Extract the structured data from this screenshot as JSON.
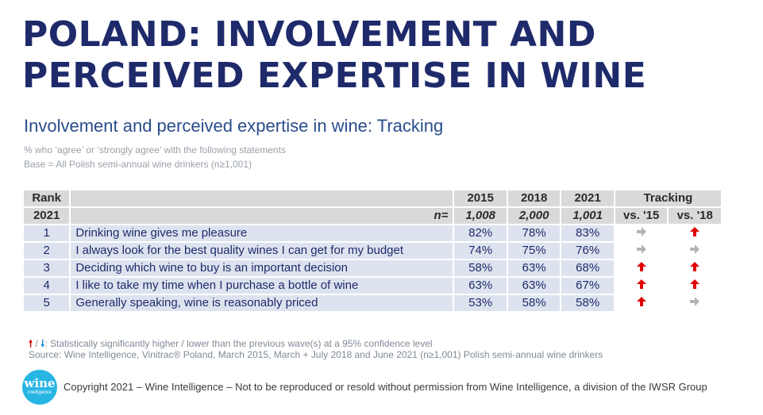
{
  "title": {
    "line1": "POLAND: INVOLVEMENT AND",
    "line2": "PERCEIVED EXPERTISE IN WINE"
  },
  "subtitle": "Involvement and perceived expertise in wine: Tracking",
  "notes": {
    "line1": "% who ‘agree’ or ‘strongly agree’ with the following statements",
    "line2": "Base = All Polish semi-annual wine drinkers (n≥1,001)"
  },
  "table": {
    "header": {
      "rank_line1": "Rank",
      "rank_line2": "2021",
      "n_label": "n=",
      "years": [
        "2015",
        "2018",
        "2021"
      ],
      "n_values": [
        "1,008",
        "2,000",
        "1,001"
      ],
      "tracking": "Tracking",
      "vs15": "vs. '15",
      "vs18": "vs. '18"
    },
    "rows": [
      {
        "rank": "1",
        "statement": "Drinking wine gives me pleasure",
        "v2015": "82%",
        "v2018": "78%",
        "v2021": "83%",
        "vs15": "same",
        "vs18": "up"
      },
      {
        "rank": "2",
        "statement": "I always look for the best quality wines I can get for my budget",
        "v2015": "74%",
        "v2018": "75%",
        "v2021": "76%",
        "vs15": "same",
        "vs18": "same"
      },
      {
        "rank": "3",
        "statement": "Deciding which wine to buy is an important decision",
        "v2015": "58%",
        "v2018": "63%",
        "v2021": "68%",
        "vs15": "up",
        "vs18": "up"
      },
      {
        "rank": "4",
        "statement": "I like to take my time when I purchase a bottle of wine",
        "v2015": "63%",
        "v2018": "63%",
        "v2021": "67%",
        "vs15": "up",
        "vs18": "up"
      },
      {
        "rank": "5",
        "statement": "Generally speaking, wine is reasonably priced",
        "v2015": "53%",
        "v2018": "58%",
        "v2021": "58%",
        "vs15": "up",
        "vs18": "same"
      }
    ]
  },
  "arrow_colors": {
    "up": "#e00000",
    "down": "#1e90d6",
    "same": "#b4b4b4"
  },
  "legend": {
    "up_icon": "red-up-arrow-icon",
    "down_icon": "blue-down-arrow-icon",
    "separator": " / ",
    "text": ": Statistically significantly higher / lower than the previous wave(s) at a 95% confidence level"
  },
  "source": "Source: Wine Intelligence, Vinitrac® Poland, March 2015, March + July 2018 and June 2021 (n≥1,001) Polish semi-annual wine drinkers",
  "logo": {
    "line1": "wine",
    "line2": "intelligence"
  },
  "copyright": "Copyright 2021 – Wine Intelligence – Not to be reproduced or resold without permission from Wine Intelligence, a division of the IWSR Group"
}
